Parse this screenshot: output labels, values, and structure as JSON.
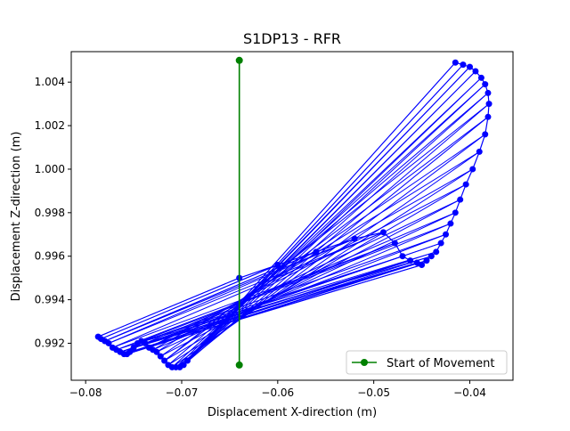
{
  "chart_data": {
    "type": "line",
    "title": "S1DP13 - RFR",
    "xlabel": "Displacement X-direction (m)",
    "ylabel": "Displacement Z-direction (m)",
    "xlim": [
      -0.0815,
      -0.0355
    ],
    "ylim": [
      0.9903,
      1.0054
    ],
    "x_ticks": [
      -0.08,
      -0.07,
      -0.06,
      -0.05,
      -0.04
    ],
    "x_tick_labels": [
      "−0.08",
      "−0.07",
      "−0.06",
      "−0.05",
      "−0.04"
    ],
    "y_ticks": [
      0.992,
      0.994,
      0.996,
      0.998,
      1.0,
      1.002,
      1.004
    ],
    "y_tick_labels": [
      "0.992",
      "0.994",
      "0.996",
      "0.998",
      "1.000",
      "1.002",
      "1.004"
    ],
    "grid": false,
    "legend_position": "lower right",
    "legend_entries": [
      "Start of Movement"
    ],
    "series": [
      {
        "name": "",
        "color": "#0000ff",
        "marker": "circle",
        "left_arc": {
          "x": [
            -0.0787,
            -0.0784,
            -0.078,
            -0.0776,
            -0.0772,
            -0.0768,
            -0.0764,
            -0.076,
            -0.0757,
            -0.0754,
            -0.075,
            -0.0746,
            -0.0742,
            -0.0738,
            -0.0734,
            -0.073,
            -0.0726,
            -0.0722,
            -0.0718,
            -0.0714,
            -0.071,
            -0.0706,
            -0.0702,
            -0.0698,
            -0.0694
          ],
          "y": [
            0.9923,
            0.9922,
            0.9921,
            0.992,
            0.9918,
            0.9917,
            0.9916,
            0.9915,
            0.9915,
            0.9916,
            0.9918,
            0.992,
            0.9921,
            0.992,
            0.9918,
            0.9917,
            0.9916,
            0.9914,
            0.9912,
            0.991,
            0.9909,
            0.9909,
            0.9909,
            0.991,
            0.9912
          ]
        },
        "right_arc": {
          "x": [
            -0.064,
            -0.06,
            -0.056,
            -0.052,
            -0.049,
            -0.0478,
            -0.047,
            -0.0462,
            -0.0455,
            -0.045,
            -0.0445,
            -0.044,
            -0.0435,
            -0.043,
            -0.0425,
            -0.042,
            -0.0415,
            -0.041,
            -0.0404,
            -0.0397,
            -0.039,
            -0.0384,
            -0.0381,
            -0.038,
            -0.0381,
            -0.0384,
            -0.0388,
            -0.0394,
            -0.04,
            -0.0407,
            -0.0415
          ],
          "y": [
            0.995,
            0.9956,
            0.9962,
            0.9968,
            0.9971,
            0.9966,
            0.996,
            0.9958,
            0.9957,
            0.9956,
            0.9958,
            0.996,
            0.9962,
            0.9966,
            0.997,
            0.9975,
            0.998,
            0.9986,
            0.9993,
            1.0,
            1.0008,
            1.0016,
            1.0024,
            1.003,
            1.0035,
            1.0039,
            1.0042,
            1.0045,
            1.0047,
            1.0048,
            1.0049
          ]
        }
      },
      {
        "name": "Start of Movement",
        "color": "#008000",
        "marker": "circle",
        "x": [
          -0.064,
          -0.064
        ],
        "y": [
          0.991,
          1.005
        ]
      }
    ]
  }
}
